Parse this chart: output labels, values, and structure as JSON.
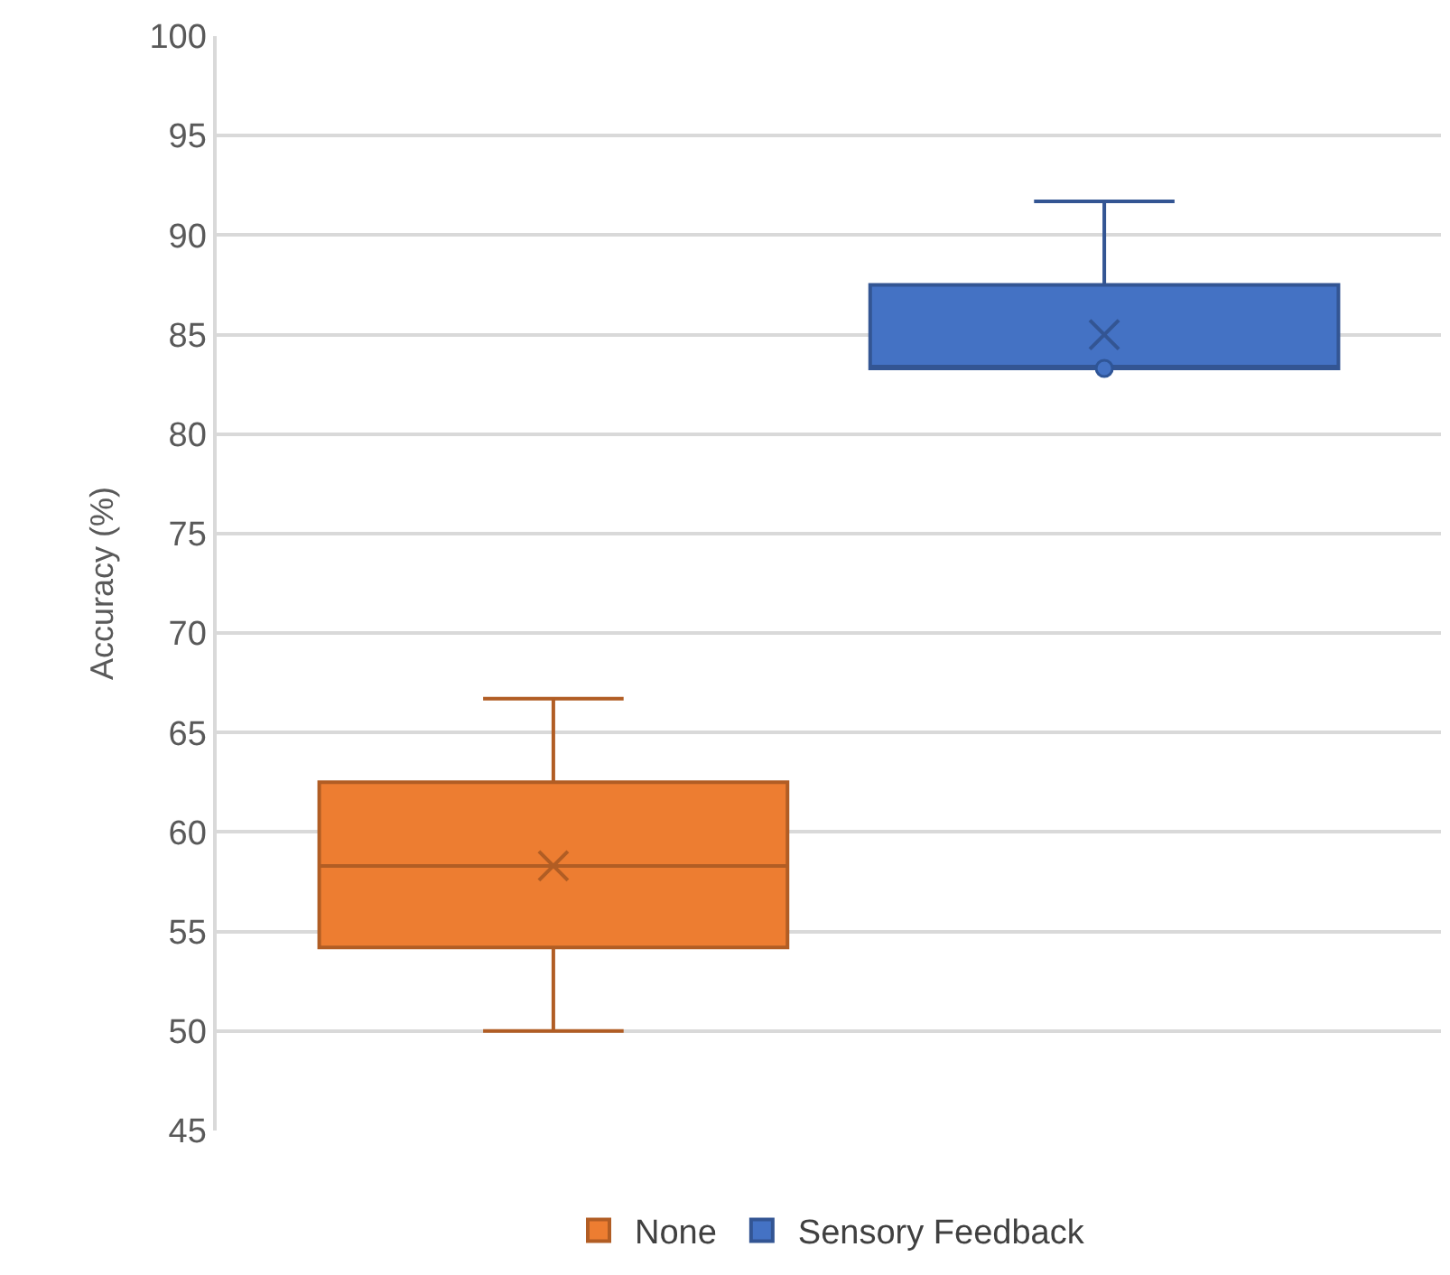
{
  "chart_data": {
    "type": "box",
    "ylabel": "Accuracy (%)",
    "categories": [
      null
    ],
    "ylim": [
      45,
      100
    ],
    "yticks": [
      45,
      50,
      55,
      60,
      65,
      70,
      75,
      80,
      85,
      90,
      95,
      100
    ],
    "grid": "y",
    "legend": "bottom",
    "tick_labels": "y",
    "series": [
      {
        "name": "None",
        "color": "#ed7d31",
        "boxes": [
          {
            "low": 50,
            "q1": 54.2,
            "median": 58.3,
            "q3": 62.5,
            "high": 66.7,
            "mean": 58.3
          }
        ]
      },
      {
        "name": "Sensory Feedback",
        "color": "#4472c4",
        "boxes": [
          {
            "low": 83.3,
            "q1": 83.3,
            "median": 83.3,
            "q3": 87.5,
            "high": 91.7,
            "mean": 85,
            "outliers": [
              83.3
            ]
          }
        ]
      }
    ]
  }
}
